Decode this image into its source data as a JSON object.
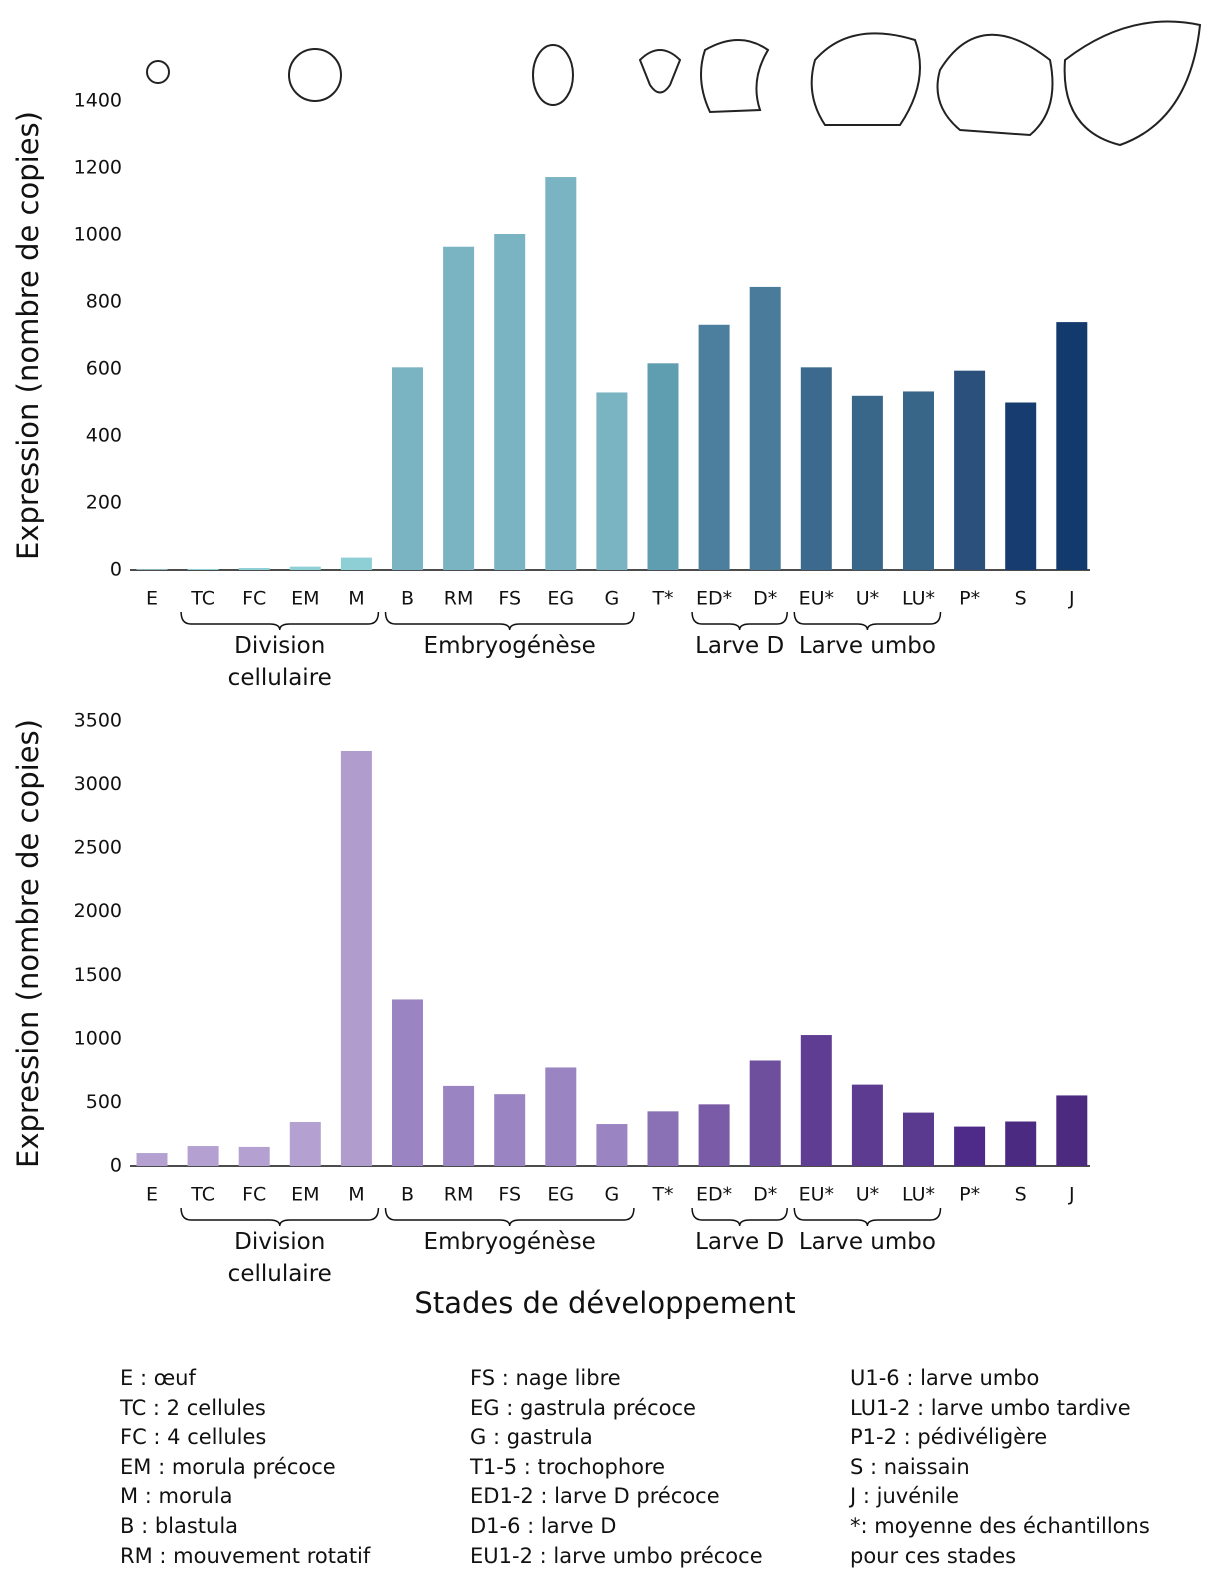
{
  "chart_data": [
    {
      "type": "bar",
      "ylabel": "Expression (nombre de copies)",
      "categories": [
        "E",
        "TC",
        "FC",
        "EM",
        "M",
        "B",
        "RM",
        "FS",
        "EG",
        "G",
        "T*",
        "ED*",
        "D*",
        "EU*",
        "U*",
        "LU*",
        "P*",
        "S",
        "J"
      ],
      "values": [
        2,
        3,
        6,
        10,
        37,
        605,
        965,
        1003,
        1173,
        530,
        617,
        732,
        845,
        605,
        520,
        533,
        595,
        500,
        740
      ],
      "colors": [
        "#8ecfd5",
        "#8ecfd5",
        "#8ecfd5",
        "#8ecfd5",
        "#8ecfd5",
        "#7ab4c2",
        "#7ab4c2",
        "#7ab4c2",
        "#7ab4c2",
        "#7ab4c2",
        "#5f9db1",
        "#4c7f9d",
        "#4a7b9a",
        "#3b6a8e",
        "#386789",
        "#376689",
        "#2c507c",
        "#173d70",
        "#133a6d"
      ],
      "ylim": [
        0,
        1400
      ],
      "yticks": [
        0,
        200,
        400,
        600,
        800,
        1000,
        1200,
        1400
      ],
      "groups": [
        {
          "label": "Division cellulaire",
          "from": "TC",
          "to": "M"
        },
        {
          "label": "Embryogénèse",
          "from": "B",
          "to": "G"
        },
        {
          "label": "Larve D",
          "from": "ED*",
          "to": "D*"
        },
        {
          "label": "Larve umbo",
          "from": "EU*",
          "to": "LU*"
        }
      ]
    },
    {
      "type": "bar",
      "ylabel": "Expression (nombre de copies)",
      "xlabel": "Stades de développement",
      "categories": [
        "E",
        "TC",
        "FC",
        "EM",
        "M",
        "B",
        "RM",
        "FS",
        "EG",
        "G",
        "T*",
        "ED*",
        "D*",
        "EU*",
        "U*",
        "LU*",
        "P*",
        "S",
        "J"
      ],
      "values": [
        102,
        157,
        150,
        346,
        3264,
        1310,
        630,
        565,
        775,
        330,
        430,
        485,
        830,
        1030,
        640,
        420,
        310,
        350,
        555
      ],
      "colors": [
        "#b4a1d1",
        "#b4a1d1",
        "#b4a1d1",
        "#b4a1d1",
        "#b09dcd",
        "#9a84c2",
        "#9a84c2",
        "#9a84c2",
        "#9a84c2",
        "#9a84c2",
        "#8a70b5",
        "#7a5ba8",
        "#6e4f9e",
        "#5f3d92",
        "#5c3b90",
        "#5a3a8f",
        "#4e2a89",
        "#4b2b81",
        "#4b2a80"
      ],
      "ylim": [
        0,
        3500
      ],
      "yticks": [
        0,
        500,
        1000,
        1500,
        2000,
        2500,
        3000,
        3500
      ],
      "groups": [
        {
          "label": "Division cellulaire",
          "from": "TC",
          "to": "M"
        },
        {
          "label": "Embryogénèse",
          "from": "B",
          "to": "G"
        },
        {
          "label": "Larve D",
          "from": "ED*",
          "to": "D*"
        },
        {
          "label": "Larve umbo",
          "from": "EU*",
          "to": "LU*"
        }
      ]
    }
  ],
  "notes": {
    "columns": [
      [
        "E : œuf",
        "TC : 2 cellules",
        "FC : 4 cellules",
        "EM : morula précoce",
        "M : morula",
        "B : blastula",
        "RM : mouvement rotatif"
      ],
      [
        "FS : nage libre",
        "EG : gastrula précoce",
        "G : gastrula",
        "T1-5 : trochophore",
        "ED1-2 : larve D précoce",
        "D1-6 : larve D",
        "EU1-2 : larve umbo précoce"
      ],
      [
        "U1-6 : larve umbo",
        "LU1-2 : larve umbo tardive",
        "P1-2 : pédivéligère",
        "S : naissain",
        "J : juvénile",
        "*: moyenne des échantillons",
        "pour ces stades"
      ]
    ]
  }
}
